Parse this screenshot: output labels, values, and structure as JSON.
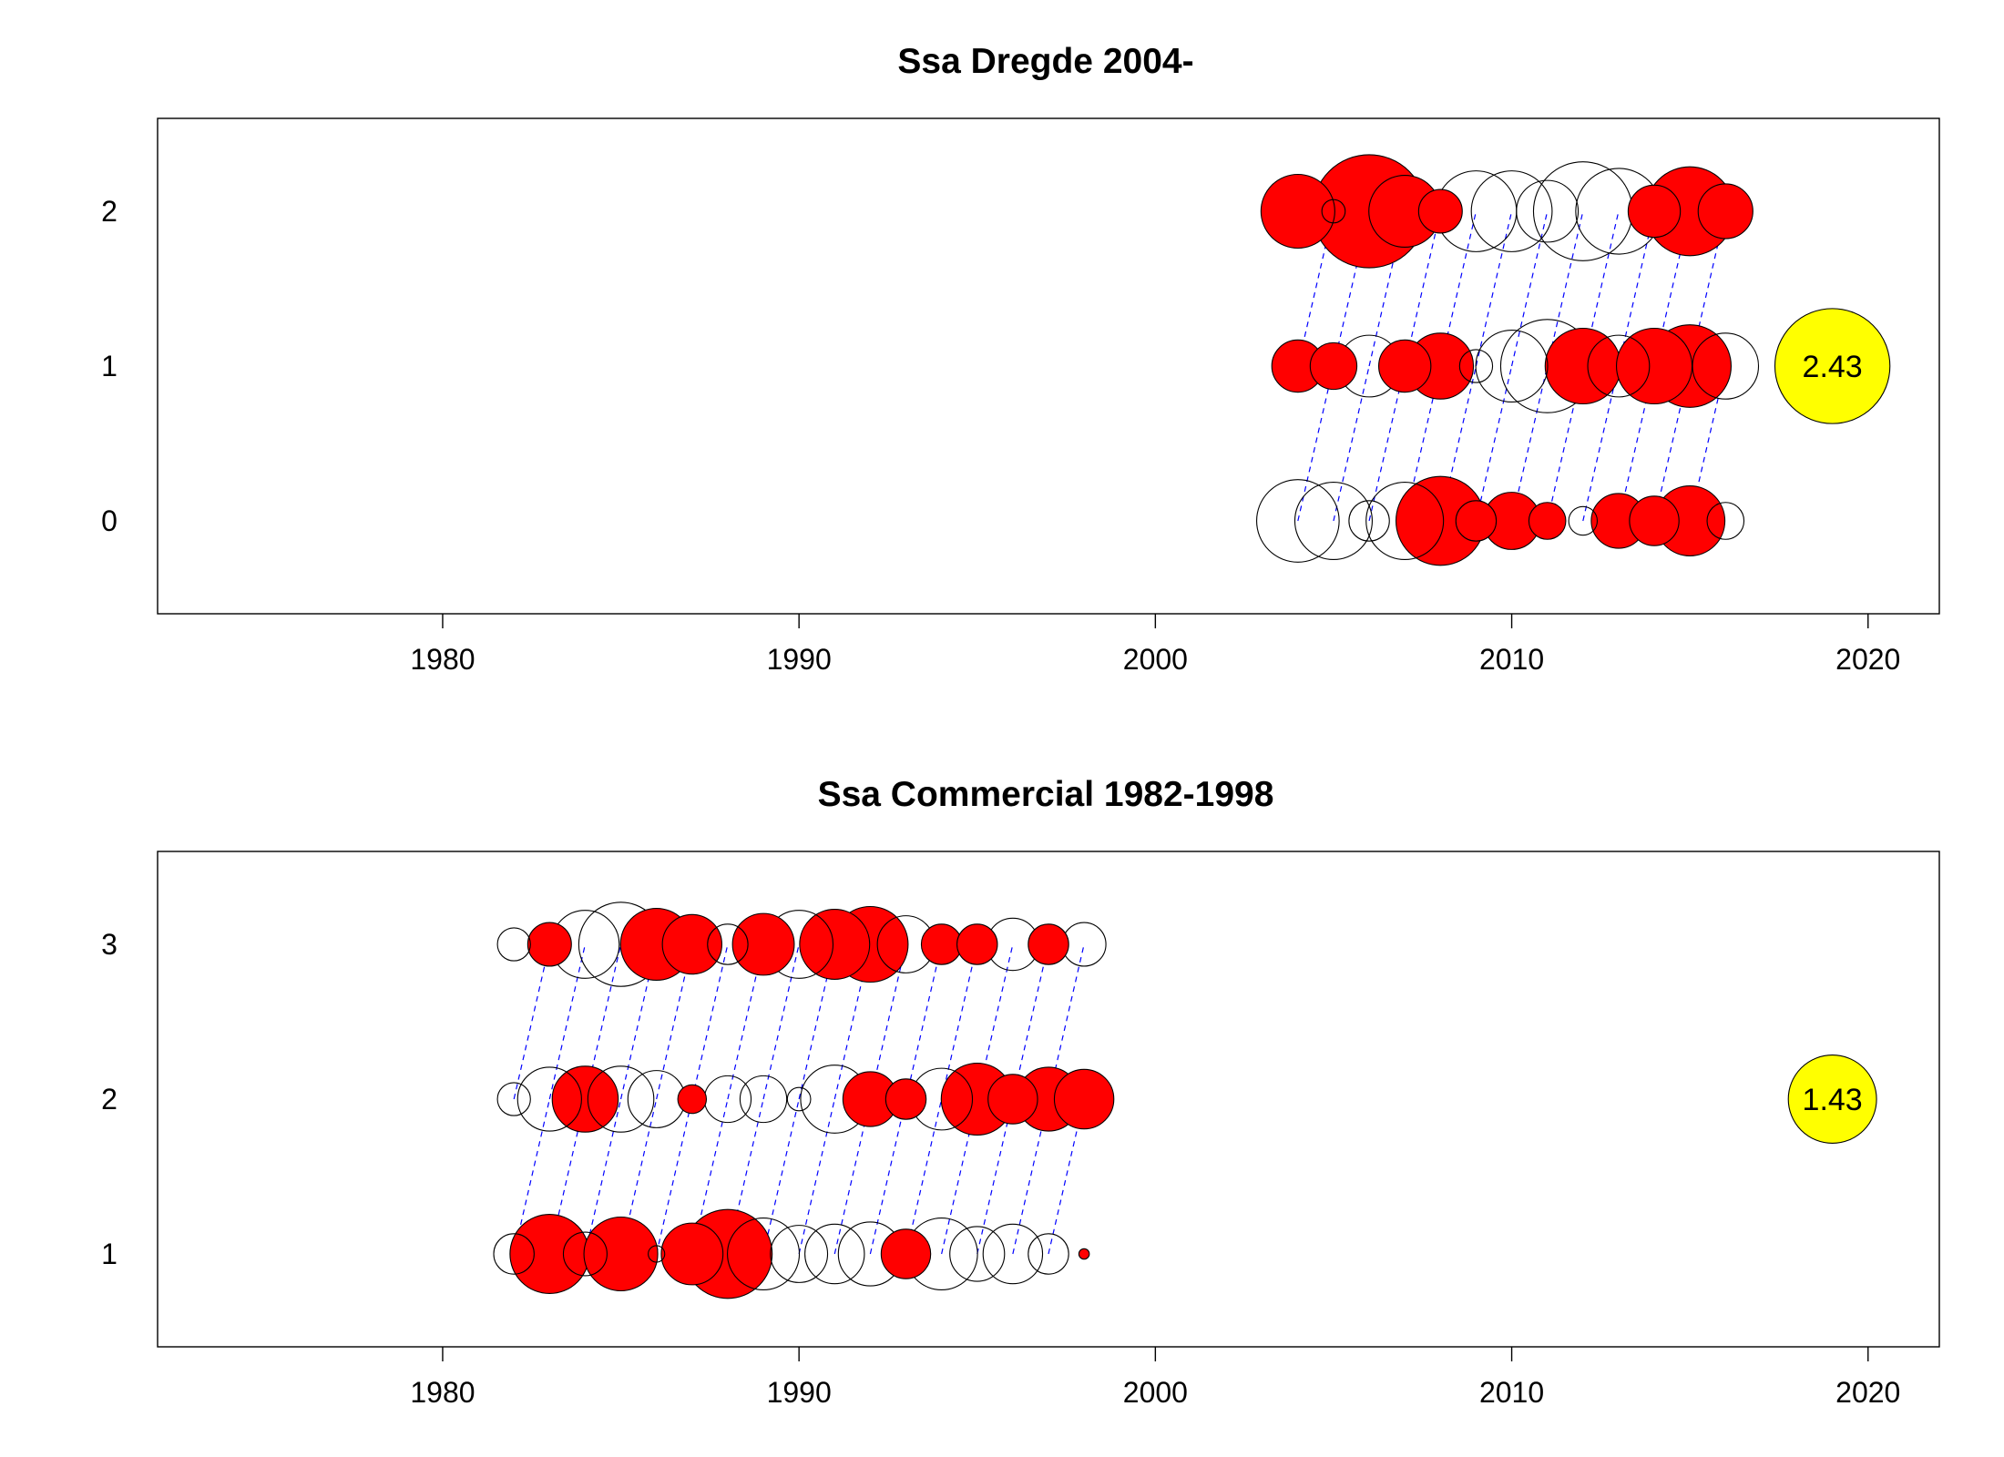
{
  "colors": {
    "positive": "#ff0000",
    "negative": "#ffffff",
    "outline": "#000000",
    "cohort_line": "#0000ff",
    "key_bubble": "#ffff00"
  },
  "chart_data": [
    {
      "type": "scatter",
      "title": "Ssa Dregde 2004-",
      "xlabel": "",
      "ylabel": "",
      "xlim": [
        1972,
        2022
      ],
      "xticks": [
        1980,
        1990,
        2000,
        2010,
        2020
      ],
      "ylim": [
        -0.6,
        2.6
      ],
      "yticks": [
        0,
        1,
        2
      ],
      "grid": false,
      "legend": "none",
      "cohort_lines": true,
      "key_bubble": {
        "x": 2019,
        "y": 1,
        "label": "2.43",
        "value": 2.43
      },
      "points": [
        {
          "x": 2004,
          "y": 2,
          "value": 1.0
        },
        {
          "x": 2005,
          "y": 2,
          "value": -0.1
        },
        {
          "x": 2006,
          "y": 2,
          "value": 2.35
        },
        {
          "x": 2007,
          "y": 2,
          "value": 0.95
        },
        {
          "x": 2008,
          "y": 2,
          "value": 0.35
        },
        {
          "x": 2009,
          "y": 2,
          "value": -1.2
        },
        {
          "x": 2010,
          "y": 2,
          "value": -1.2
        },
        {
          "x": 2011,
          "y": 2,
          "value": -0.7
        },
        {
          "x": 2012,
          "y": 2,
          "value": -1.8
        },
        {
          "x": 2013,
          "y": 2,
          "value": -1.35
        },
        {
          "x": 2014,
          "y": 2,
          "value": 0.5
        },
        {
          "x": 2015,
          "y": 2,
          "value": 1.45
        },
        {
          "x": 2016,
          "y": 2,
          "value": 0.55
        },
        {
          "x": 2004,
          "y": 1,
          "value": 0.5
        },
        {
          "x": 2005,
          "y": 1,
          "value": 0.4
        },
        {
          "x": 2006,
          "y": 1,
          "value": -0.7
        },
        {
          "x": 2007,
          "y": 1,
          "value": 0.5
        },
        {
          "x": 2008,
          "y": 1,
          "value": 0.8
        },
        {
          "x": 2009,
          "y": 1,
          "value": -0.2
        },
        {
          "x": 2010,
          "y": 1,
          "value": -0.95
        },
        {
          "x": 2011,
          "y": 1,
          "value": -1.6
        },
        {
          "x": 2012,
          "y": 1,
          "value": 1.05
        },
        {
          "x": 2013,
          "y": 1,
          "value": -0.7
        },
        {
          "x": 2014,
          "y": 1,
          "value": 1.05
        },
        {
          "x": 2015,
          "y": 1,
          "value": 1.25
        },
        {
          "x": 2016,
          "y": 1,
          "value": -0.8
        },
        {
          "x": 2004,
          "y": 0,
          "value": -1.25
        },
        {
          "x": 2005,
          "y": 0,
          "value": -1.1
        },
        {
          "x": 2006,
          "y": 0,
          "value": -0.3
        },
        {
          "x": 2007,
          "y": 0,
          "value": -1.1
        },
        {
          "x": 2008,
          "y": 0,
          "value": 1.45
        },
        {
          "x": 2009,
          "y": 0,
          "value": 0.3
        },
        {
          "x": 2010,
          "y": 0,
          "value": 0.6
        },
        {
          "x": 2011,
          "y": 0,
          "value": 0.25
        },
        {
          "x": 2012,
          "y": 0,
          "value": -0.15
        },
        {
          "x": 2013,
          "y": 0,
          "value": 0.55
        },
        {
          "x": 2014,
          "y": 0,
          "value": 0.45
        },
        {
          "x": 2015,
          "y": 0,
          "value": 0.9
        },
        {
          "x": 2016,
          "y": 0,
          "value": -0.25
        }
      ]
    },
    {
      "type": "scatter",
      "title": "Ssa Commercial 1982-1998",
      "xlabel": "",
      "ylabel": "",
      "xlim": [
        1972,
        2022
      ],
      "xticks": [
        1980,
        1990,
        2000,
        2010,
        2020
      ],
      "ylim": [
        0.4,
        3.6
      ],
      "yticks": [
        1,
        2,
        3
      ],
      "grid": false,
      "legend": "none",
      "cohort_lines": true,
      "key_bubble": {
        "x": 2019,
        "y": 2,
        "label": "1.43",
        "value": 1.43
      },
      "points": [
        {
          "x": 1982,
          "y": 3,
          "value": -0.2
        },
        {
          "x": 1983,
          "y": 3,
          "value": 0.35
        },
        {
          "x": 1984,
          "y": 3,
          "value": -0.85
        },
        {
          "x": 1985,
          "y": 3,
          "value": -1.3
        },
        {
          "x": 1986,
          "y": 3,
          "value": 0.95
        },
        {
          "x": 1987,
          "y": 3,
          "value": 0.65
        },
        {
          "x": 1988,
          "y": 3,
          "value": -0.3
        },
        {
          "x": 1989,
          "y": 3,
          "value": 0.7
        },
        {
          "x": 1990,
          "y": 3,
          "value": -0.85
        },
        {
          "x": 1991,
          "y": 3,
          "value": 0.9
        },
        {
          "x": 1992,
          "y": 3,
          "value": 1.05
        },
        {
          "x": 1993,
          "y": 3,
          "value": -0.6
        },
        {
          "x": 1994,
          "y": 3,
          "value": 0.3
        },
        {
          "x": 1995,
          "y": 3,
          "value": 0.3
        },
        {
          "x": 1996,
          "y": 3,
          "value": -0.5
        },
        {
          "x": 1997,
          "y": 3,
          "value": 0.3
        },
        {
          "x": 1998,
          "y": 3,
          "value": -0.35
        },
        {
          "x": 1982,
          "y": 2,
          "value": -0.2
        },
        {
          "x": 1983,
          "y": 2,
          "value": -0.75
        },
        {
          "x": 1984,
          "y": 2,
          "value": 0.8
        },
        {
          "x": 1985,
          "y": 2,
          "value": -0.8
        },
        {
          "x": 1986,
          "y": 2,
          "value": -0.6
        },
        {
          "x": 1987,
          "y": 2,
          "value": 0.15
        },
        {
          "x": 1988,
          "y": 2,
          "value": -0.4
        },
        {
          "x": 1989,
          "y": 2,
          "value": -0.4
        },
        {
          "x": 1990,
          "y": 2,
          "value": -0.1
        },
        {
          "x": 1991,
          "y": 2,
          "value": -0.85
        },
        {
          "x": 1992,
          "y": 2,
          "value": 0.55
        },
        {
          "x": 1993,
          "y": 2,
          "value": 0.3
        },
        {
          "x": 1994,
          "y": 2,
          "value": -0.7
        },
        {
          "x": 1995,
          "y": 2,
          "value": 0.95
        },
        {
          "x": 1996,
          "y": 2,
          "value": 0.45
        },
        {
          "x": 1997,
          "y": 2,
          "value": 0.75
        },
        {
          "x": 1998,
          "y": 2,
          "value": 0.65
        },
        {
          "x": 1982,
          "y": 1,
          "value": -0.3
        },
        {
          "x": 1983,
          "y": 1,
          "value": 1.15
        },
        {
          "x": 1984,
          "y": 1,
          "value": -0.35
        },
        {
          "x": 1985,
          "y": 1,
          "value": 1.0
        },
        {
          "x": 1986,
          "y": 1,
          "value": -0.05
        },
        {
          "x": 1987,
          "y": 1,
          "value": 0.7
        },
        {
          "x": 1988,
          "y": 1,
          "value": 1.45
        },
        {
          "x": 1989,
          "y": 1,
          "value": -0.95
        },
        {
          "x": 1990,
          "y": 1,
          "value": -0.6
        },
        {
          "x": 1991,
          "y": 1,
          "value": -0.65
        },
        {
          "x": 1992,
          "y": 1,
          "value": -0.75
        },
        {
          "x": 1993,
          "y": 1,
          "value": 0.45
        },
        {
          "x": 1994,
          "y": 1,
          "value": -0.95
        },
        {
          "x": 1995,
          "y": 1,
          "value": -0.55
        },
        {
          "x": 1996,
          "y": 1,
          "value": -0.65
        },
        {
          "x": 1997,
          "y": 1,
          "value": -0.3
        },
        {
          "x": 1998,
          "y": 1,
          "value": 0.02
        }
      ]
    }
  ]
}
